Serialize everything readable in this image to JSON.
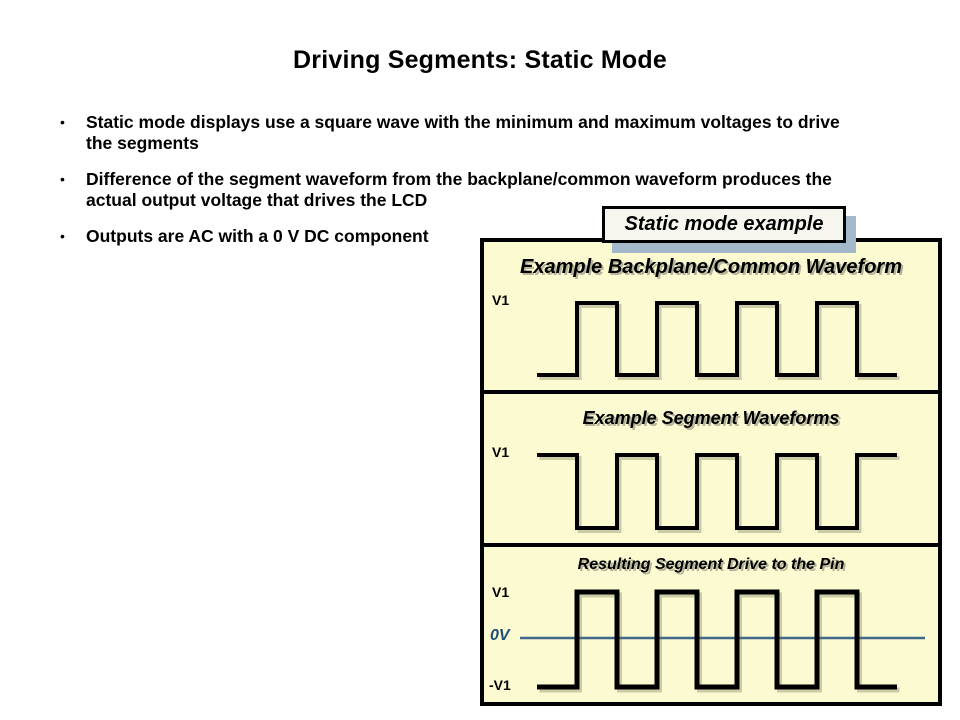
{
  "slide": {
    "title": "Driving Segments: Static Mode",
    "bullet_glyph": "•",
    "bullets": [
      {
        "lines": [
          "Static mode displays use a square wave with the minimum and maximum voltages to drive",
          "the segments"
        ]
      },
      {
        "lines": [
          "Difference of the segment waveform from the backplane/common waveform produces the",
          "actual output voltage that drives the LCD"
        ]
      },
      {
        "lines": [
          "Outputs are AC with a 0 V DC component"
        ]
      }
    ]
  },
  "example_callout": {
    "label": "Static mode example"
  },
  "panels": [
    {
      "title": "Example Backplane/Common Waveform",
      "v_top_label": "V1",
      "wave": {
        "type": "square",
        "start_level": "low",
        "segments": 9,
        "high_pulses": 4
      }
    },
    {
      "title": "Example Segment Waveforms",
      "v_top_label": "V1",
      "wave": {
        "type": "square",
        "start_level": "high",
        "segments": 9,
        "high_pulses": 5
      }
    },
    {
      "title": "Resulting Segment Drive to the Pin",
      "v_top_label": "V1",
      "zero_label": "0V",
      "v_bottom_label": "-V1",
      "wave": {
        "type": "square",
        "start_level": "low",
        "segments": 9,
        "high_pulses": 4
      }
    }
  ],
  "colors": {
    "panel_bg": "#FCFAD0",
    "callout_bg": "#F7F6EE",
    "callout_shadow": "#A3B8C8",
    "zero_line": "#3E688A",
    "zero_text": "#1F4E79",
    "ink": "#000000"
  }
}
